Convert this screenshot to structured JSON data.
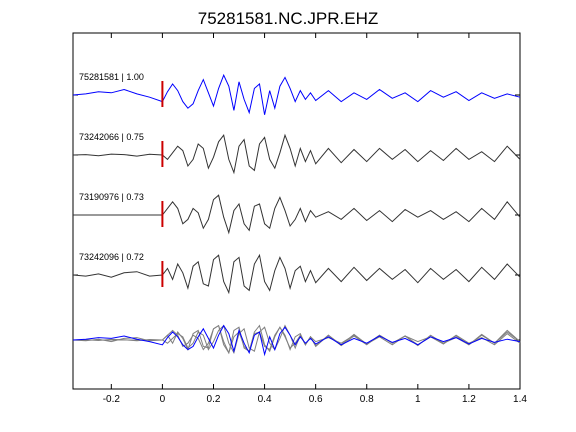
{
  "chart_data": {
    "type": "line",
    "title": "75281581.NC.JPR.EHZ",
    "xlabel": "",
    "ylabel": "",
    "xlim": [
      -0.35,
      1.4
    ],
    "x_ticks": [
      -0.2,
      0,
      0.2,
      0.4,
      0.6,
      0.8,
      1,
      1.2,
      1.4
    ],
    "x_tick_labels": [
      "-0.2",
      "0",
      "0.2",
      "0.4",
      "0.6",
      "0.8",
      "1",
      "1.2",
      "1.4"
    ],
    "grid": false,
    "pick_time": 0,
    "pick_color": "#cc0000",
    "series": [
      {
        "name": "75281581",
        "label": "75281581 | 1.00",
        "color": "#0000ff",
        "x": [
          -0.35,
          -0.3,
          -0.25,
          -0.2,
          -0.15,
          -0.1,
          -0.05,
          0,
          0.02,
          0.04,
          0.06,
          0.08,
          0.1,
          0.12,
          0.14,
          0.16,
          0.18,
          0.2,
          0.22,
          0.24,
          0.26,
          0.28,
          0.3,
          0.32,
          0.34,
          0.36,
          0.38,
          0.4,
          0.42,
          0.44,
          0.46,
          0.48,
          0.5,
          0.52,
          0.54,
          0.56,
          0.58,
          0.6,
          0.65,
          0.7,
          0.75,
          0.8,
          0.85,
          0.9,
          0.95,
          1,
          1.05,
          1.1,
          1.15,
          1.2,
          1.25,
          1.3,
          1.35,
          1.4
        ],
        "y": [
          0,
          0.05,
          0.15,
          0.1,
          0.25,
          0.05,
          -0.1,
          -0.3,
          0.15,
          0.5,
          0.2,
          -0.3,
          -0.6,
          -0.4,
          0.2,
          0.7,
          0.1,
          -0.5,
          0.3,
          0.9,
          0.4,
          -0.7,
          0.6,
          -0.2,
          -0.8,
          0.3,
          0.5,
          -0.9,
          0.2,
          -0.6,
          0.4,
          0.8,
          0.3,
          -0.3,
          0.2,
          -0.2,
          0.1,
          -0.25,
          0.2,
          -0.3,
          0.1,
          -0.2,
          0.25,
          -0.15,
          0.1,
          -0.3,
          0.2,
          -0.1,
          0.15,
          -0.25,
          0.1,
          -0.15,
          0.05,
          -0.1
        ]
      },
      {
        "name": "73242066",
        "label": "73242066 | 0.75",
        "color": "#333333",
        "x": [
          -0.35,
          -0.3,
          -0.25,
          -0.2,
          -0.15,
          -0.1,
          -0.05,
          0,
          0.02,
          0.04,
          0.06,
          0.08,
          0.1,
          0.12,
          0.14,
          0.16,
          0.18,
          0.2,
          0.22,
          0.24,
          0.26,
          0.28,
          0.3,
          0.32,
          0.34,
          0.36,
          0.38,
          0.4,
          0.42,
          0.44,
          0.46,
          0.48,
          0.5,
          0.52,
          0.54,
          0.56,
          0.58,
          0.6,
          0.65,
          0.7,
          0.75,
          0.8,
          0.85,
          0.9,
          0.95,
          1,
          1.05,
          1.1,
          1.15,
          1.2,
          1.25,
          1.3,
          1.35,
          1.4
        ],
        "y": [
          0,
          0.02,
          -0.03,
          0.04,
          0.02,
          -0.05,
          0.03,
          0,
          -0.2,
          0.1,
          0.4,
          0.2,
          -0.5,
          -0.2,
          0.5,
          0.3,
          -0.6,
          -0.1,
          0.6,
          0.9,
          -0.2,
          -0.8,
          0.4,
          0.7,
          -0.5,
          -0.7,
          0.5,
          0.8,
          -0.2,
          -0.6,
          0.1,
          0.9,
          0.3,
          -0.5,
          0.3,
          -0.3,
          0.2,
          -0.4,
          0.3,
          -0.35,
          0.25,
          -0.3,
          0.3,
          -0.2,
          0.25,
          -0.3,
          0.2,
          -0.25,
          0.3,
          -0.2,
          0.15,
          -0.3,
          0.4,
          -0.2
        ]
      },
      {
        "name": "73190976",
        "label": "73190976 | 0.73",
        "color": "#333333",
        "x": [
          -0.35,
          -0.3,
          -0.25,
          -0.2,
          -0.15,
          -0.1,
          -0.05,
          0,
          0.02,
          0.04,
          0.06,
          0.08,
          0.1,
          0.12,
          0.14,
          0.16,
          0.18,
          0.2,
          0.22,
          0.24,
          0.26,
          0.28,
          0.3,
          0.32,
          0.34,
          0.36,
          0.38,
          0.4,
          0.42,
          0.44,
          0.46,
          0.48,
          0.5,
          0.52,
          0.54,
          0.56,
          0.58,
          0.6,
          0.65,
          0.7,
          0.75,
          0.8,
          0.85,
          0.9,
          0.95,
          1,
          1.05,
          1.1,
          1.15,
          1.2,
          1.25,
          1.3,
          1.35,
          1.4
        ],
        "y": [
          0,
          0,
          0,
          0,
          0,
          0,
          0,
          0,
          0.3,
          0.6,
          0.3,
          -0.4,
          -0.2,
          0.3,
          0.1,
          -0.6,
          -0.2,
          0.7,
          0.9,
          -0.1,
          -0.8,
          0.2,
          0.5,
          -0.4,
          -0.7,
          0.4,
          0.5,
          -0.4,
          -0.6,
          0.3,
          0.8,
          0.2,
          -0.5,
          -0.2,
          0.3,
          -0.3,
          0.2,
          -0.1,
          0.15,
          -0.2,
          0.3,
          -0.25,
          0.2,
          -0.3,
          0.25,
          -0.1,
          0.2,
          -0.2,
          0.15,
          -0.3,
          0.3,
          -0.2,
          0.6,
          -0.1
        ]
      },
      {
        "name": "73242096",
        "label": "73242096 | 0.72",
        "color": "#333333",
        "x": [
          -0.35,
          -0.3,
          -0.25,
          -0.2,
          -0.15,
          -0.1,
          -0.05,
          0,
          0.02,
          0.04,
          0.06,
          0.08,
          0.1,
          0.12,
          0.14,
          0.16,
          0.18,
          0.2,
          0.22,
          0.24,
          0.26,
          0.28,
          0.3,
          0.32,
          0.34,
          0.36,
          0.38,
          0.4,
          0.42,
          0.44,
          0.46,
          0.48,
          0.5,
          0.52,
          0.54,
          0.56,
          0.58,
          0.6,
          0.65,
          0.7,
          0.75,
          0.8,
          0.85,
          0.9,
          0.95,
          1,
          1.05,
          1.1,
          1.15,
          1.2,
          1.25,
          1.3,
          1.35,
          1.4
        ],
        "y": [
          0,
          -0.05,
          0.05,
          -0.1,
          0.1,
          0.15,
          -0.05,
          0,
          0.3,
          -0.2,
          0.5,
          0.1,
          -0.6,
          0.4,
          0.6,
          -0.4,
          -0.5,
          0.7,
          0.9,
          -0.3,
          -0.8,
          0.6,
          0.8,
          -0.5,
          -0.7,
          0.5,
          0.9,
          -0.3,
          -0.7,
          0.2,
          0.8,
          0.3,
          -0.6,
          0.2,
          0.4,
          -0.3,
          0.2,
          -0.35,
          0.3,
          -0.3,
          0.35,
          -0.25,
          0.3,
          -0.2,
          0.25,
          -0.35,
          0.3,
          -0.2,
          0.25,
          -0.3,
          0.35,
          -0.2,
          0.5,
          -0.1
        ]
      }
    ]
  }
}
